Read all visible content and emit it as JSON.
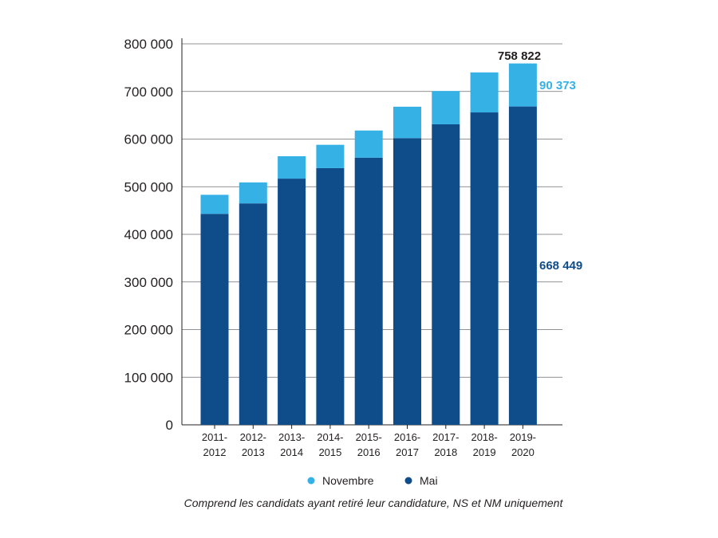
{
  "chart_data": {
    "type": "bar",
    "stacked": true,
    "categories": [
      [
        "2011-",
        "2012"
      ],
      [
        "2012-",
        "2013"
      ],
      [
        "2013-",
        "2014"
      ],
      [
        "2014-",
        "2015"
      ],
      [
        "2015-",
        "2016"
      ],
      [
        "2016-",
        "2017"
      ],
      [
        "2017-",
        "2018"
      ],
      [
        "2018-",
        "2019"
      ],
      [
        "2019-",
        "2020"
      ]
    ],
    "series": [
      {
        "name": "Mai",
        "color": "#0f4c8a",
        "values": [
          443000,
          465000,
          517000,
          539000,
          561000,
          602000,
          631000,
          656000,
          668449
        ]
      },
      {
        "name": "Novembre",
        "color": "#36b1e6",
        "values": [
          40000,
          44000,
          47000,
          49000,
          57000,
          66000,
          70000,
          84000,
          90373
        ]
      }
    ],
    "totals": [
      483000,
      509000,
      564000,
      588000,
      618000,
      668000,
      701000,
      740000,
      758822
    ],
    "yticks": [
      "0",
      "100 000",
      "200 000",
      "300 000",
      "400 000",
      "500 000",
      "600 000",
      "700 000",
      "800 000"
    ],
    "ylim": [
      0,
      800000
    ],
    "grid": true,
    "annotations": {
      "total_last": "758 822",
      "novembre_last": "90 373",
      "mai_last": "668 449"
    },
    "legend": [
      {
        "label": "Novembre",
        "color": "#36b1e6"
      },
      {
        "label": "Mai",
        "color": "#0f4c8a"
      }
    ],
    "note": "Comprend les candidats ayant retiré leur candidature, NS et NM uniquement",
    "title": "",
    "xlabel": "",
    "ylabel": ""
  }
}
